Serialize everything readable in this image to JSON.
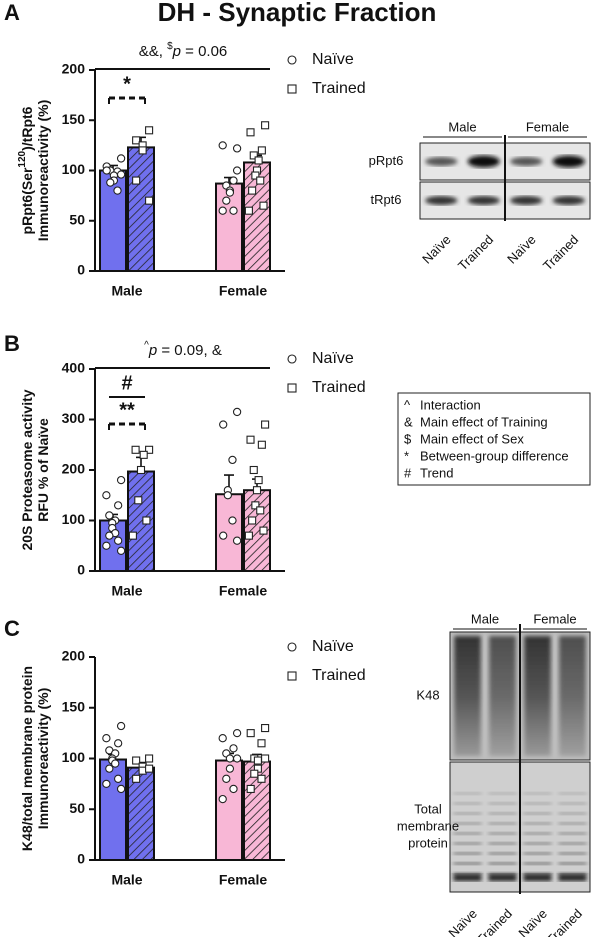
{
  "figure": {
    "title": "DH - Synaptic Fraction"
  },
  "chart_data": [
    {
      "panel": "A",
      "type": "bar",
      "ylabel": [
        [
          {
            "text": "pRpt6(Ser"
          },
          {
            "text": "120",
            "sup": true
          },
          {
            "text": ")/tRpt6"
          }
        ],
        [
          {
            "text": "Immunoreactivity (%)"
          }
        ]
      ],
      "annotation": [
        {
          "text": "&&, "
        },
        {
          "text": "$",
          "sup": true
        },
        {
          "text": "p",
          "italic": true
        },
        {
          "text": " = 0.06"
        }
      ],
      "categories": [
        "Male",
        "Female"
      ],
      "category_colors": [
        "#7070ee",
        "#f8b7d6"
      ],
      "ylim": [
        0,
        200
      ],
      "yticks": [
        0,
        50,
        100,
        150,
        200
      ],
      "series": [
        {
          "name": "Naïve",
          "marker": "circle",
          "hatch": false,
          "values": [
            100,
            87
          ],
          "errors": [
            5,
            6
          ],
          "points": [
            [
              112,
              104,
              99,
              100,
              95,
              90,
              88,
              80,
              100,
              96
            ],
            [
              122,
              125,
              90,
              85,
              80,
              78,
              70,
              60,
              60,
              100
            ]
          ]
        },
        {
          "name": "Trained",
          "marker": "square",
          "hatch": true,
          "values": [
            123,
            108
          ],
          "errors": [
            10,
            7
          ],
          "points": [
            [
              140,
              130,
              125,
              120,
              90,
              70
            ],
            [
              145,
              138,
              120,
              115,
              110,
              100,
              95,
              90,
              80,
              65,
              60
            ]
          ]
        }
      ],
      "comparisons": [
        {
          "label": "*",
          "dashed": true
        }
      ]
    },
    {
      "panel": "B",
      "type": "bar",
      "ylabel": [
        [
          {
            "text": "20S Proteasome activity"
          }
        ],
        [
          {
            "text": "RFU % of Naïve"
          }
        ]
      ],
      "annotation": [
        {
          "text": "^",
          "sup": true
        },
        {
          "text": "p",
          "italic": true
        },
        {
          "text": " = 0.09, &"
        }
      ],
      "categories": [
        "Male",
        "Female"
      ],
      "category_colors": [
        "#7070ee",
        "#f8b7d6"
      ],
      "ylim": [
        0,
        400
      ],
      "yticks": [
        0,
        100,
        200,
        300,
        400
      ],
      "series": [
        {
          "name": "Naïve",
          "marker": "circle",
          "hatch": false,
          "values": [
            100,
            152
          ],
          "errors": [
            12,
            38
          ],
          "points": [
            [
              180,
              150,
              130,
              110,
              100,
              95,
              85,
              75,
              70,
              60,
              50,
              40
            ],
            [
              315,
              290,
              220,
              160,
              150,
              100,
              70,
              60
            ]
          ]
        },
        {
          "name": "Trained",
          "marker": "square",
          "hatch": true,
          "values": [
            197,
            160
          ],
          "errors": [
            28,
            22
          ],
          "points": [
            [
              240,
              240,
              230,
              200,
              140,
              100,
              70
            ],
            [
              290,
              260,
              250,
              200,
              180,
              160,
              130,
              120,
              100,
              80,
              70
            ]
          ]
        }
      ],
      "comparisons": [
        {
          "label": "#",
          "dashed": false
        },
        {
          "label": "**",
          "dashed": true
        }
      ]
    },
    {
      "panel": "C",
      "type": "bar",
      "ylabel": [
        [
          {
            "text": "K48/total membrane protein"
          }
        ],
        [
          {
            "text": "Immunoreactivity (%)"
          }
        ]
      ],
      "categories": [
        "Male",
        "Female"
      ],
      "category_colors": [
        "#7070ee",
        "#f8b7d6"
      ],
      "ylim": [
        0,
        200
      ],
      "yticks": [
        0,
        50,
        100,
        150,
        200
      ],
      "series": [
        {
          "name": "Naïve",
          "marker": "circle",
          "hatch": false,
          "values": [
            99,
            98
          ],
          "errors": [
            5,
            7
          ],
          "points": [
            [
              132,
              120,
              115,
              108,
              105,
              100,
              98,
              95,
              90,
              80,
              75,
              70
            ],
            [
              125,
              120,
              110,
              105,
              100,
              90,
              80,
              70,
              60,
              100
            ]
          ]
        },
        {
          "name": "Trained",
          "marker": "square",
          "hatch": true,
          "values": [
            91,
            97
          ],
          "errors": [
            5,
            7
          ],
          "points": [
            [
              100,
              98,
              92,
              88,
              80,
              90
            ],
            [
              130,
              125,
              115,
              100,
              98,
              90,
              85,
              80,
              70,
              100
            ]
          ]
        }
      ],
      "comparisons": []
    }
  ],
  "blots": [
    {
      "groups": [
        "Male",
        "Female"
      ],
      "rows": [
        [
          "pRpt6"
        ],
        [
          "tRpt6"
        ]
      ],
      "lanes": [
        "Naïve",
        "Trained",
        "Naïve",
        "Trained"
      ]
    },
    {
      "groups": [
        "Male",
        "Female"
      ],
      "rows": [
        [
          "K48"
        ],
        [
          "Total",
          "membrane",
          "protein"
        ]
      ],
      "lanes": [
        "Naïve",
        "Trained",
        "Naïve",
        "Trained"
      ]
    }
  ],
  "key": [
    [
      "^",
      "Interaction"
    ],
    [
      "&",
      "Main effect of Training"
    ],
    [
      "$",
      "Main effect of Sex"
    ],
    [
      "*",
      "Between-group difference"
    ],
    [
      "#",
      "Trend"
    ]
  ]
}
